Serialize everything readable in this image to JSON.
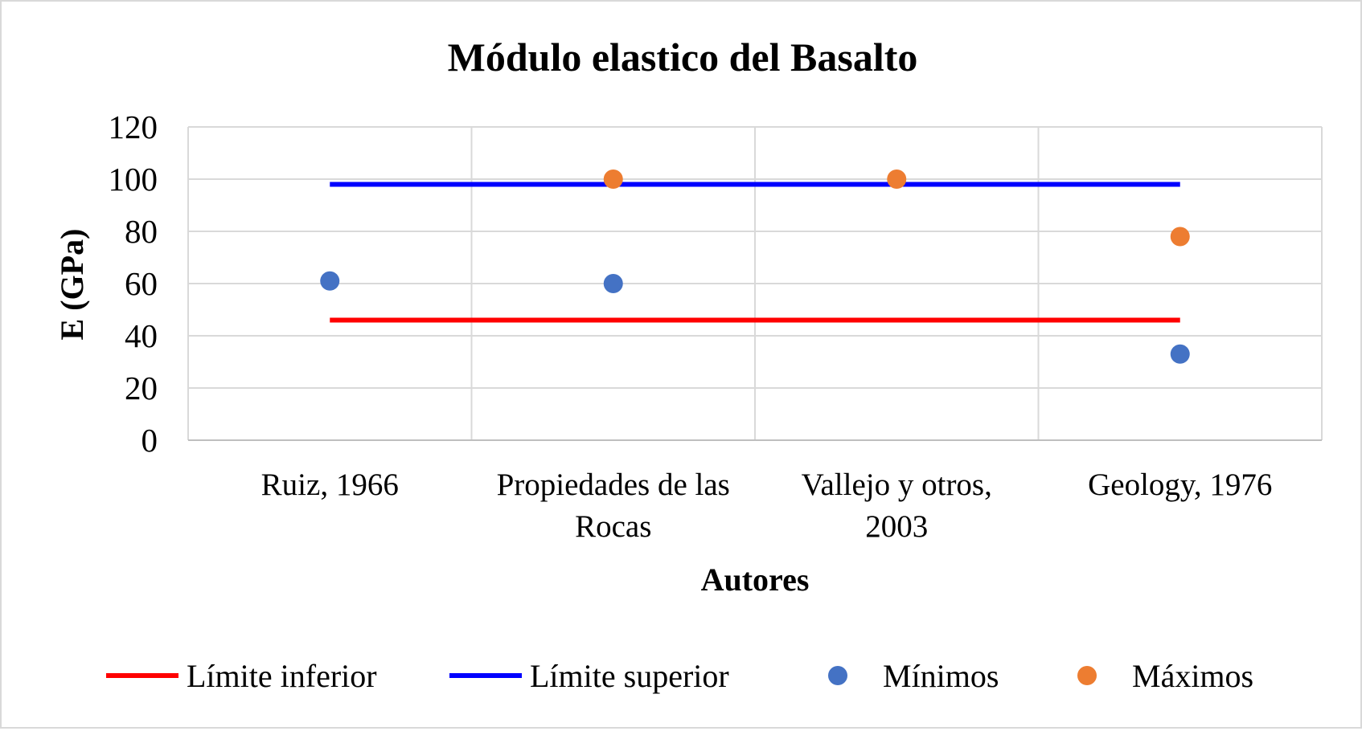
{
  "chart_data": {
    "type": "scatter",
    "title": "Módulo elastico del Basalto",
    "xlabel": "Autores",
    "ylabel": "E (GPa)",
    "categories": [
      [
        "Ruiz, 1966"
      ],
      [
        "Propiedades de las",
        "Rocas"
      ],
      [
        "Vallejo y otros,",
        "2003"
      ],
      [
        "Geology, 1976"
      ]
    ],
    "ylim": [
      0,
      120
    ],
    "yticks": [
      0,
      20,
      40,
      60,
      80,
      100,
      120
    ],
    "grid": true,
    "legend_position": "bottom",
    "reference_lines": [
      {
        "name": "Límite  inferior",
        "value": 46,
        "color": "#ff0000"
      },
      {
        "name": "Límite  superior",
        "value": 98,
        "color": "#0000ff"
      }
    ],
    "series": [
      {
        "name": "Mínimos",
        "color": "#4472c4",
        "values": [
          61,
          60,
          null,
          33
        ]
      },
      {
        "name": "Máximos",
        "color": "#ed7d31",
        "values": [
          null,
          100,
          100,
          78
        ]
      }
    ]
  }
}
